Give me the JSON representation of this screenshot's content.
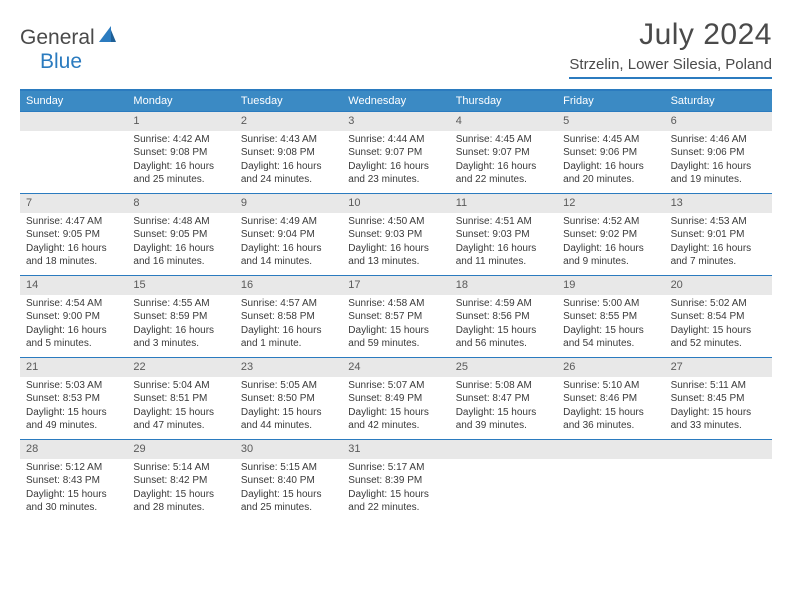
{
  "brand": {
    "part1": "General",
    "part2": "Blue"
  },
  "title": "July 2024",
  "location": "Strzelin, Lower Silesia, Poland",
  "colors": {
    "header_bg": "#3b8ac4",
    "accent": "#2b7bbf",
    "daynum_bg": "#e8e8e8",
    "text": "#3a3a3a"
  },
  "weekdays": [
    "Sunday",
    "Monday",
    "Tuesday",
    "Wednesday",
    "Thursday",
    "Friday",
    "Saturday"
  ],
  "start_offset": 1,
  "days": [
    {
      "n": 1,
      "sr": "4:42 AM",
      "ss": "9:08 PM",
      "dl": "16 hours and 25 minutes."
    },
    {
      "n": 2,
      "sr": "4:43 AM",
      "ss": "9:08 PM",
      "dl": "16 hours and 24 minutes."
    },
    {
      "n": 3,
      "sr": "4:44 AM",
      "ss": "9:07 PM",
      "dl": "16 hours and 23 minutes."
    },
    {
      "n": 4,
      "sr": "4:45 AM",
      "ss": "9:07 PM",
      "dl": "16 hours and 22 minutes."
    },
    {
      "n": 5,
      "sr": "4:45 AM",
      "ss": "9:06 PM",
      "dl": "16 hours and 20 minutes."
    },
    {
      "n": 6,
      "sr": "4:46 AM",
      "ss": "9:06 PM",
      "dl": "16 hours and 19 minutes."
    },
    {
      "n": 7,
      "sr": "4:47 AM",
      "ss": "9:05 PM",
      "dl": "16 hours and 18 minutes."
    },
    {
      "n": 8,
      "sr": "4:48 AM",
      "ss": "9:05 PM",
      "dl": "16 hours and 16 minutes."
    },
    {
      "n": 9,
      "sr": "4:49 AM",
      "ss": "9:04 PM",
      "dl": "16 hours and 14 minutes."
    },
    {
      "n": 10,
      "sr": "4:50 AM",
      "ss": "9:03 PM",
      "dl": "16 hours and 13 minutes."
    },
    {
      "n": 11,
      "sr": "4:51 AM",
      "ss": "9:03 PM",
      "dl": "16 hours and 11 minutes."
    },
    {
      "n": 12,
      "sr": "4:52 AM",
      "ss": "9:02 PM",
      "dl": "16 hours and 9 minutes."
    },
    {
      "n": 13,
      "sr": "4:53 AM",
      "ss": "9:01 PM",
      "dl": "16 hours and 7 minutes."
    },
    {
      "n": 14,
      "sr": "4:54 AM",
      "ss": "9:00 PM",
      "dl": "16 hours and 5 minutes."
    },
    {
      "n": 15,
      "sr": "4:55 AM",
      "ss": "8:59 PM",
      "dl": "16 hours and 3 minutes."
    },
    {
      "n": 16,
      "sr": "4:57 AM",
      "ss": "8:58 PM",
      "dl": "16 hours and 1 minute."
    },
    {
      "n": 17,
      "sr": "4:58 AM",
      "ss": "8:57 PM",
      "dl": "15 hours and 59 minutes."
    },
    {
      "n": 18,
      "sr": "4:59 AM",
      "ss": "8:56 PM",
      "dl": "15 hours and 56 minutes."
    },
    {
      "n": 19,
      "sr": "5:00 AM",
      "ss": "8:55 PM",
      "dl": "15 hours and 54 minutes."
    },
    {
      "n": 20,
      "sr": "5:02 AM",
      "ss": "8:54 PM",
      "dl": "15 hours and 52 minutes."
    },
    {
      "n": 21,
      "sr": "5:03 AM",
      "ss": "8:53 PM",
      "dl": "15 hours and 49 minutes."
    },
    {
      "n": 22,
      "sr": "5:04 AM",
      "ss": "8:51 PM",
      "dl": "15 hours and 47 minutes."
    },
    {
      "n": 23,
      "sr": "5:05 AM",
      "ss": "8:50 PM",
      "dl": "15 hours and 44 minutes."
    },
    {
      "n": 24,
      "sr": "5:07 AM",
      "ss": "8:49 PM",
      "dl": "15 hours and 42 minutes."
    },
    {
      "n": 25,
      "sr": "5:08 AM",
      "ss": "8:47 PM",
      "dl": "15 hours and 39 minutes."
    },
    {
      "n": 26,
      "sr": "5:10 AM",
      "ss": "8:46 PM",
      "dl": "15 hours and 36 minutes."
    },
    {
      "n": 27,
      "sr": "5:11 AM",
      "ss": "8:45 PM",
      "dl": "15 hours and 33 minutes."
    },
    {
      "n": 28,
      "sr": "5:12 AM",
      "ss": "8:43 PM",
      "dl": "15 hours and 30 minutes."
    },
    {
      "n": 29,
      "sr": "5:14 AM",
      "ss": "8:42 PM",
      "dl": "15 hours and 28 minutes."
    },
    {
      "n": 30,
      "sr": "5:15 AM",
      "ss": "8:40 PM",
      "dl": "15 hours and 25 minutes."
    },
    {
      "n": 31,
      "sr": "5:17 AM",
      "ss": "8:39 PM",
      "dl": "15 hours and 22 minutes."
    }
  ],
  "labels": {
    "sunrise": "Sunrise:",
    "sunset": "Sunset:",
    "daylight": "Daylight:"
  }
}
